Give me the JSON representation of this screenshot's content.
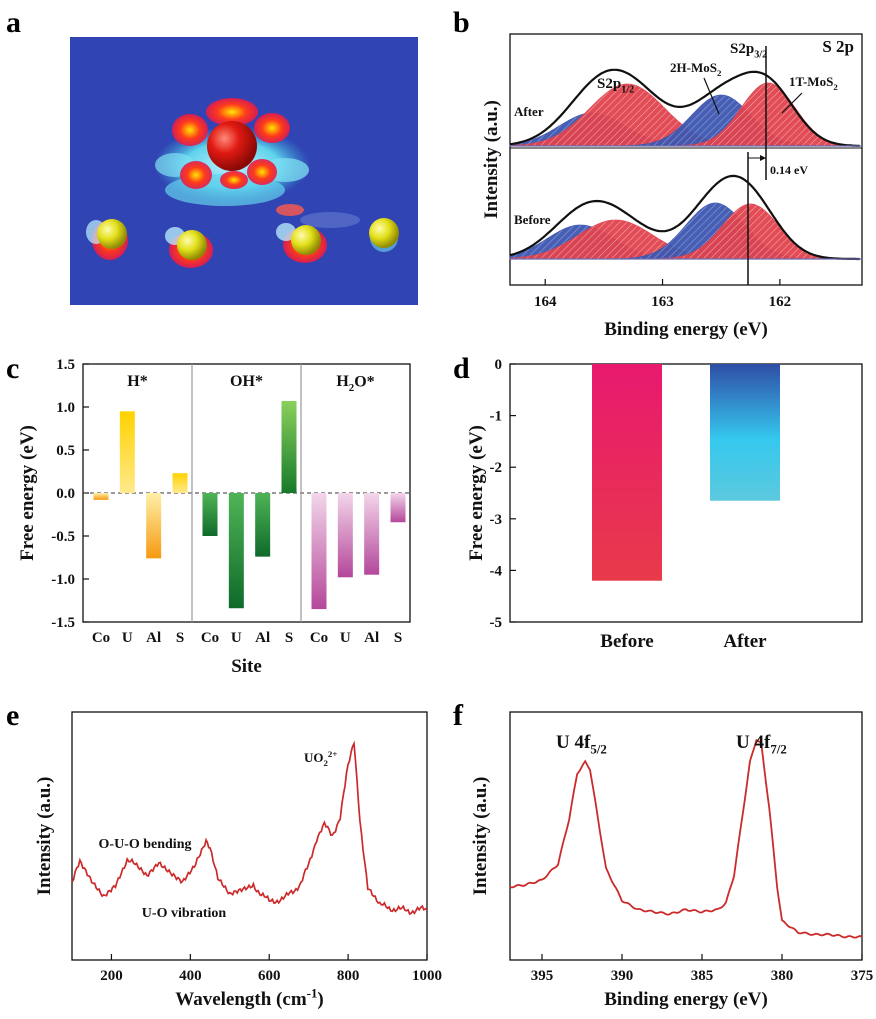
{
  "panels": {
    "a": {
      "letter": "a"
    },
    "b": {
      "letter": "b"
    },
    "c": {
      "letter": "c"
    },
    "d": {
      "letter": "d"
    },
    "e": {
      "letter": "e"
    },
    "f": {
      "letter": "f"
    }
  },
  "chart_data": [
    {
      "panel": "b",
      "type": "line",
      "title": "S 2p",
      "xlabel": "Binding energy (eV)",
      "ylabel": "Intensity (a.u.)",
      "xlim": [
        164.3,
        161.3
      ],
      "x_reversed": true,
      "xticks": [
        164,
        163,
        162
      ],
      "spectra": [
        {
          "name": "After",
          "peaks": [
            {
              "label": "S2p1/2 (2H)",
              "center": 163.6,
              "color": "#3d57b0"
            },
            {
              "label": "S2p1/2 (1T)",
              "center": 163.3,
              "color": "#e0434e"
            },
            {
              "label": "2H-MoS2",
              "center": 162.5,
              "color": "#3d57b0"
            },
            {
              "label": "1T-MoS2",
              "center": 162.1,
              "color": "#e0434e"
            }
          ]
        },
        {
          "name": "Before",
          "peaks": [
            {
              "label": "S2p1/2 (2H)",
              "center": 163.7,
              "color": "#3d57b0"
            },
            {
              "label": "S2p1/2 (1T)",
              "center": 163.4,
              "color": "#e0434e"
            },
            {
              "label": "2H-MoS2",
              "center": 162.55,
              "color": "#3d57b0"
            },
            {
              "label": "1T-MoS2",
              "center": 162.25,
              "color": "#e0434e"
            }
          ]
        }
      ],
      "annotations": {
        "after": "After",
        "before": "Before",
        "s2p12_base": "S2p",
        "s2p12_sub": "1/2",
        "s2p32_base": "S2p",
        "s2p32_sub": "3/2",
        "h2_base": "2H-MoS",
        "h2_sub": "2",
        "t1_base": "1T-MoS",
        "t1_sub": "2",
        "shift": "0.14 eV"
      }
    },
    {
      "panel": "c",
      "type": "bar",
      "xlabel": "Site",
      "ylabel": "Free energy (eV)",
      "ylim": [
        -1.5,
        1.5
      ],
      "yticks": [
        -1.5,
        -1.0,
        -0.5,
        0.0,
        0.5,
        1.0,
        1.5
      ],
      "ytick_labels": [
        "-1.5",
        "-1.0",
        "-0.5",
        "0.0",
        "0.5",
        "1.0",
        "1.5"
      ],
      "groups": [
        {
          "name_base": "H*",
          "name_sub": "",
          "name_tail": "",
          "categories": [
            "Co",
            "U",
            "Al",
            "S"
          ],
          "values": [
            -0.08,
            0.95,
            -0.76,
            0.23
          ],
          "color": "#f5b800"
        },
        {
          "name_base": "OH*",
          "name_sub": "",
          "name_tail": "",
          "categories": [
            "Co",
            "U",
            "Al",
            "S"
          ],
          "values": [
            -0.5,
            -1.34,
            -0.74,
            1.07
          ],
          "color": "#1f8a2e"
        },
        {
          "name_base": "H",
          "name_sub": "2",
          "name_tail": "O*",
          "categories": [
            "Co",
            "U",
            "Al",
            "S"
          ],
          "values": [
            -1.35,
            -0.98,
            -0.95,
            -0.34
          ],
          "color": "#b4479a"
        }
      ]
    },
    {
      "panel": "d",
      "type": "bar",
      "ylabel": "Free energy (eV)",
      "categories": [
        "Before",
        "After"
      ],
      "values": [
        -4.2,
        -2.65
      ],
      "ylim": [
        -5,
        0
      ],
      "yticks": [
        0,
        -1,
        -2,
        -3,
        -4,
        -5
      ],
      "colors": {
        "before_top": "#e8196f",
        "before_bottom": "#e83a4a",
        "after_top": "#2f4ea6",
        "after_mid": "#35c8ee",
        "after_bottom": "#5cc9de"
      }
    },
    {
      "panel": "e",
      "type": "line",
      "xlabel": "Wavelength (cm-1)",
      "xlabel_base": "Wavelength (cm",
      "xlabel_sup": "-1",
      "xlabel_tail": ")",
      "ylabel": "Intensity (a.u.)",
      "xlim": [
        100,
        1000
      ],
      "xticks": [
        200,
        400,
        600,
        800,
        1000
      ],
      "series": [
        {
          "color": "#cc2a2a",
          "x": [
            100,
            120,
            150,
            180,
            210,
            240,
            260,
            290,
            320,
            350,
            380,
            410,
            440,
            450,
            470,
            500,
            530,
            560,
            600,
            640,
            680,
            700,
            720,
            740,
            760,
            780,
            800,
            815,
            830,
            850,
            880,
            920,
            960,
            1000
          ],
          "y": [
            0.2,
            0.32,
            0.22,
            0.14,
            0.2,
            0.33,
            0.3,
            0.24,
            0.32,
            0.27,
            0.22,
            0.3,
            0.43,
            0.41,
            0.22,
            0.13,
            0.16,
            0.19,
            0.1,
            0.12,
            0.2,
            0.3,
            0.45,
            0.52,
            0.47,
            0.56,
            0.85,
            0.98,
            0.55,
            0.18,
            0.08,
            0.06,
            0.05,
            0.06
          ]
        }
      ],
      "annotations": {
        "uo2_base": "UO",
        "uo2_sub": "2",
        "uo2_sup": "2+",
        "bending": "O-U-O bending",
        "vibration": "U-O vibration"
      }
    },
    {
      "panel": "f",
      "type": "line",
      "xlabel": "Binding energy (eV)",
      "ylabel": "Intensity (a.u.)",
      "xlim": [
        397,
        375
      ],
      "x_reversed": true,
      "xticks": [
        395,
        390,
        385,
        380,
        375
      ],
      "series": [
        {
          "color": "#cc2a2a",
          "x": [
            397,
            396,
            395,
            394,
            393.3,
            392.8,
            392.3,
            392,
            391.5,
            391,
            390,
            389,
            388,
            387,
            386,
            385,
            384,
            383.5,
            383,
            382.5,
            382,
            381.6,
            381.3,
            380.8,
            380.3,
            380,
            379,
            378,
            377,
            376,
            375
          ],
          "y": [
            0.3,
            0.31,
            0.33,
            0.4,
            0.6,
            0.8,
            0.85,
            0.82,
            0.6,
            0.38,
            0.24,
            0.2,
            0.19,
            0.18,
            0.2,
            0.19,
            0.2,
            0.23,
            0.35,
            0.6,
            0.85,
            0.95,
            0.93,
            0.65,
            0.3,
            0.15,
            0.1,
            0.09,
            0.09,
            0.08,
            0.08
          ]
        }
      ],
      "annotations": {
        "u52_base": "U 4f",
        "u52_sub": "5/2",
        "u72_base": "U 4f",
        "u72_sub": "7/2"
      }
    }
  ]
}
